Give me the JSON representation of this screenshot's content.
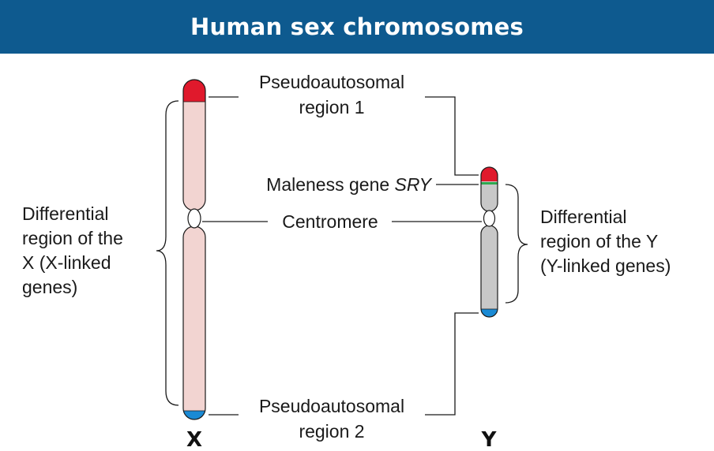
{
  "header": {
    "title": "Human sex chromosomes"
  },
  "labels": {
    "par1_line1": "Pseudoautosomal",
    "par1_line2": "region 1",
    "par2_line1": "Pseudoautosomal",
    "par2_line2": "region 2",
    "sry_prefix": "Maleness gene ",
    "sry_gene": "SRY",
    "centromere": "Centromere",
    "diff_x": [
      "Differential",
      "region of the",
      "X (X-linked",
      "genes)"
    ],
    "diff_y": [
      "Differential",
      "region of the Y",
      "(Y-linked genes)"
    ],
    "x_chrom": "X",
    "y_chrom": "Y"
  },
  "colors": {
    "header_bg": "#0e5a8f",
    "x_body": "#f2d4d1",
    "y_body": "#c8c8c8",
    "par1": "#e0192c",
    "par2": "#1a8ad4",
    "sry_band": "#2fa84f"
  }
}
